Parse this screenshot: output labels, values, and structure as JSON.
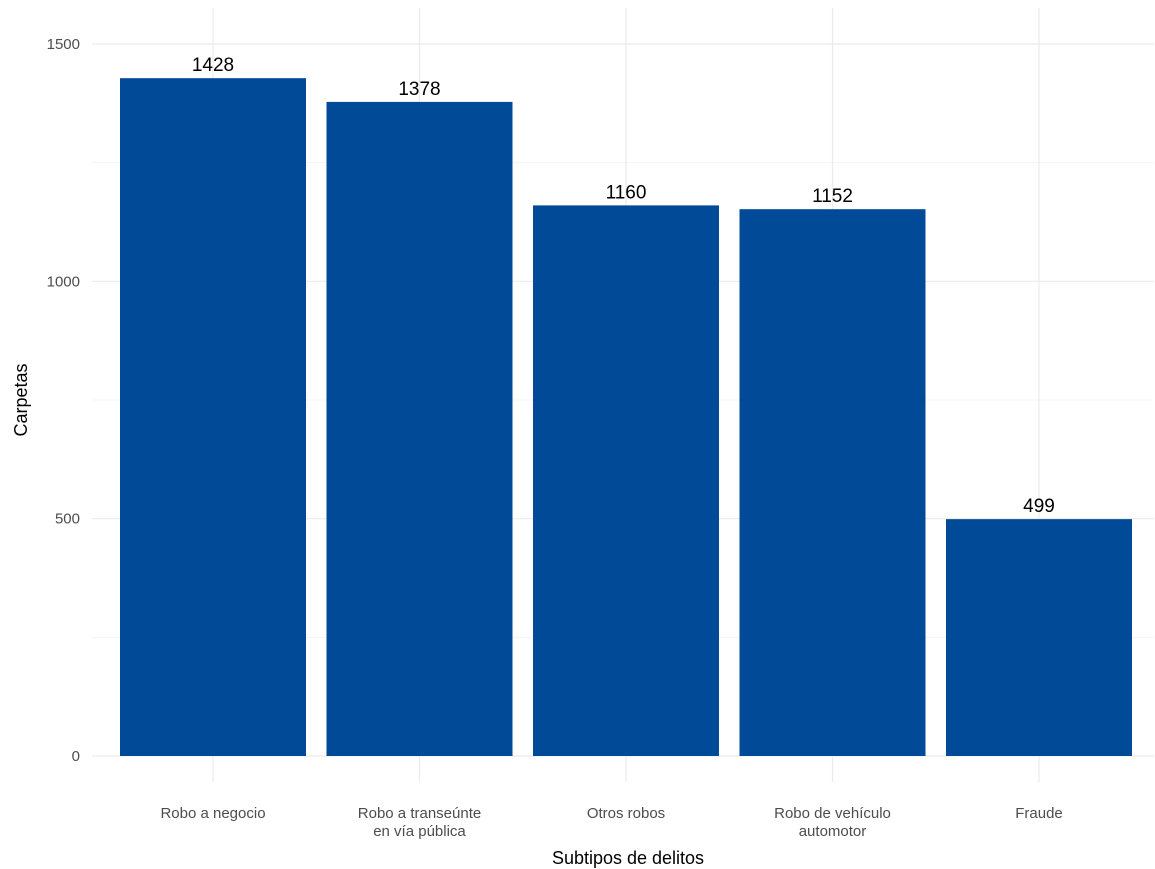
{
  "chart_data": {
    "type": "bar",
    "title": "",
    "xlabel": "Subtipos de delitos",
    "ylabel": "Carpetas",
    "categories": [
      [
        "Robo a negocio"
      ],
      [
        "Robo a transeúnte",
        "en vía pública"
      ],
      [
        "Otros robos"
      ],
      [
        "Robo de vehículo",
        "automotor"
      ],
      [
        "Fraude"
      ]
    ],
    "values": [
      1428,
      1378,
      1160,
      1152,
      499
    ],
    "ylim": [
      0,
      1500
    ],
    "yticks": [
      0,
      500,
      1000,
      1500
    ],
    "grid": true,
    "legend": "none",
    "bar_color": "#004A98"
  }
}
